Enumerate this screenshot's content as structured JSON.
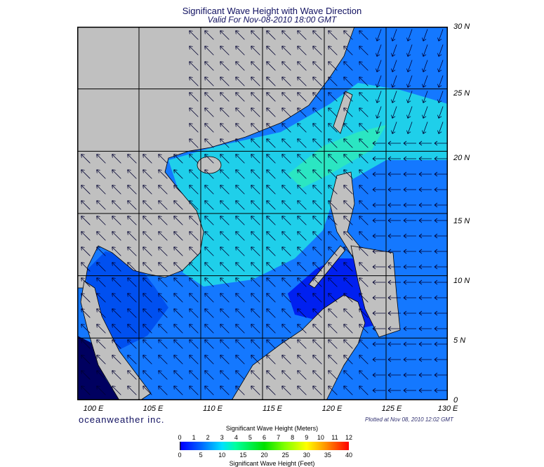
{
  "title": "Significant Wave Height with Wave Direction",
  "subtitle": "Valid For Nov-08-2010 18:00 GMT",
  "lon_labels": [
    "100 E",
    "105 E",
    "110 E",
    "115 E",
    "120 E",
    "125 E",
    "130 E"
  ],
  "lat_labels": [
    "30 N",
    "25 N",
    "20 N",
    "15 N",
    "10 N",
    "5 N",
    "0"
  ],
  "logo": "oceanweather inc.",
  "plotted": "Plotted at Nov 08, 2010 12:02 GMT",
  "colorbar": {
    "title_meters": "Significant Wave Height (Meters)",
    "title_feet": "Significant Wave Height (Feet)",
    "meters": [
      "0",
      "1",
      "2",
      "3",
      "4",
      "5",
      "6",
      "7",
      "8",
      "9",
      "10",
      "11",
      "12"
    ],
    "feet": [
      "0",
      "5",
      "10",
      "15",
      "20",
      "25",
      "30",
      "35",
      "40"
    ],
    "colors": [
      "#000000",
      "#0000ff",
      "#00e0ff",
      "#00e000",
      "#ffff00",
      "#ff0000"
    ]
  },
  "colors": {
    "land": "#c0c0c0",
    "ocean_low": "#0040ff",
    "ocean_mid": "#1090ff",
    "ocean_high": "#20e0e0"
  }
}
